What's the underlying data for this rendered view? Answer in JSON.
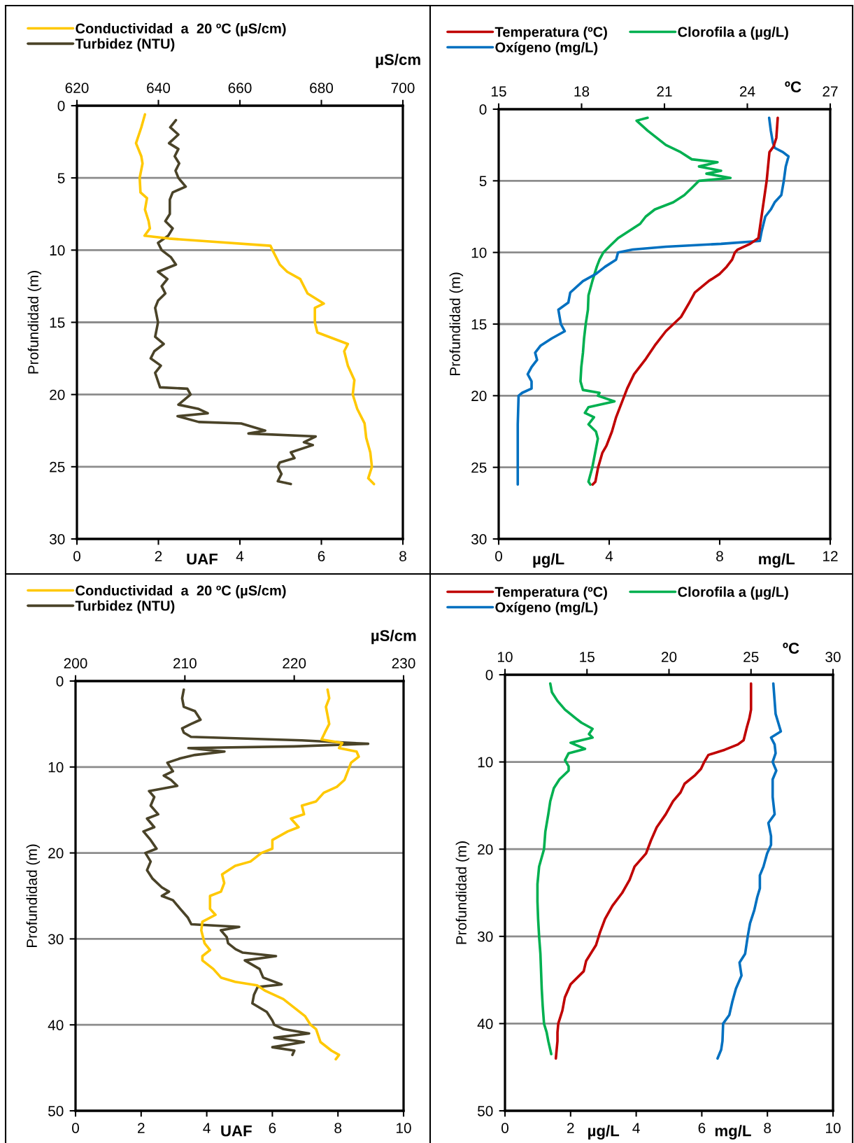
{
  "chart_data": [
    {
      "type": "line",
      "ylabel": "Profundidad (m)",
      "xlabel": [
        "UAF"
      ],
      "x2label": "µS/cm",
      "ylim": [
        30,
        0
      ],
      "yticks": [
        0,
        5,
        10,
        15,
        20,
        25,
        30
      ],
      "xlim": [
        0,
        8
      ],
      "xticks": [
        0,
        2,
        4,
        6,
        8
      ],
      "x2lim": [
        620,
        700
      ],
      "x2ticks": [
        620,
        640,
        660,
        680,
        700
      ],
      "grid": "y",
      "legend": "top",
      "line_style": "solid",
      "series": [
        {
          "name": "Conductividad  a  20 ºC (µS/cm)",
          "color": "#ffc800",
          "axis": "x2",
          "x": [
            636.7,
            635.8,
            634.5,
            635.8,
            636.1,
            635.4,
            635.6,
            637.2,
            636.7,
            637.6,
            637.9,
            636.6,
            642.6,
            652.6,
            667.5,
            668.0,
            669.8,
            671.6,
            674.8,
            676.6,
            680.6,
            678.4,
            678.4,
            679.0,
            686.5,
            685.6,
            686.5,
            688.1,
            687.7,
            688.8,
            690.6,
            691.0,
            692.0,
            692.4,
            691.5,
            692.9
          ],
          "values": [
            0.6,
            1.5,
            2.6,
            3.5,
            4.0,
            5.0,
            6.0,
            6.4,
            7.2,
            8.0,
            8.5,
            9.0,
            9.2,
            9.4,
            9.7,
            10.0,
            11.0,
            11.5,
            12.0,
            13.0,
            13.7,
            14.0,
            15.0,
            15.7,
            16.5,
            17.0,
            18.0,
            19.0,
            20.0,
            21.0,
            22.0,
            23.0,
            24.0,
            25.0,
            25.8,
            26.2
          ]
        },
        {
          "name": "Turbidez (NTU)",
          "color": "#4a4328",
          "x": [
            2.43,
            2.29,
            2.49,
            2.26,
            2.49,
            2.4,
            2.51,
            2.42,
            2.49,
            2.67,
            2.35,
            2.28,
            2.28,
            2.17,
            2.35,
            2.24,
            1.99,
            2.08,
            2.31,
            2.43,
            1.99,
            2.22,
            2.08,
            2.17,
            1.99,
            1.92,
            1.99,
            1.92,
            2.13,
            1.9,
            1.81,
            2.06,
            1.92,
            2.04,
            2.71,
            2.79,
            2.49,
            2.99,
            3.21,
            2.47,
            2.99,
            4.03,
            4.62,
            4.21,
            5.86,
            5.57,
            5.79,
            5.25,
            5.34,
            4.98,
            4.93,
            5.02,
            4.93,
            5.25
          ],
          "values": [
            1.0,
            1.5,
            2.0,
            2.6,
            3.0,
            3.5,
            4.0,
            4.5,
            5.0,
            5.6,
            6.0,
            6.5,
            7.5,
            8.0,
            8.5,
            9.0,
            9.5,
            10.0,
            10.5,
            11.0,
            11.5,
            12.0,
            12.5,
            13.0,
            13.5,
            14.0,
            15.0,
            16.0,
            16.5,
            17.0,
            17.5,
            18.0,
            18.5,
            19.5,
            19.6,
            20.0,
            20.7,
            21.0,
            21.3,
            21.5,
            21.9,
            22.0,
            22.5,
            22.7,
            22.9,
            23.3,
            23.5,
            24.0,
            24.4,
            24.7,
            25.0,
            25.5,
            26.0,
            26.2
          ]
        }
      ]
    },
    {
      "type": "line",
      "ylabel": "Profundidad (m)",
      "xlabel": [
        "µg/L",
        "mg/L"
      ],
      "x2label": "ºC",
      "ylim": [
        30,
        0
      ],
      "yticks": [
        0,
        5,
        10,
        15,
        20,
        25,
        30
      ],
      "xlim": [
        0,
        12
      ],
      "xticks": [
        0,
        4,
        8,
        12
      ],
      "x2lim": [
        15,
        27
      ],
      "x2ticks": [
        15,
        18,
        21,
        24,
        27
      ],
      "grid": "y",
      "legend": "top",
      "line_style": "solid",
      "series": [
        {
          "name": "Temperatura (ºC)",
          "color": "#c00000",
          "axis": "x2",
          "x": [
            25.1,
            25.05,
            24.95,
            24.8,
            24.7,
            24.55,
            24.4,
            24.1,
            23.65,
            23.55,
            23.45,
            23.25,
            23.0,
            22.6,
            22.1,
            21.9,
            21.6,
            21.05,
            20.65,
            20.3,
            19.9,
            19.65,
            19.55,
            19.25,
            19.1,
            18.9,
            18.75,
            18.6,
            18.5,
            18.4
          ],
          "values": [
            0.6,
            2.0,
            2.6,
            3.0,
            5.0,
            7.0,
            9.0,
            9.4,
            9.8,
            10.0,
            10.5,
            11.0,
            11.5,
            12.0,
            12.8,
            13.5,
            14.5,
            15.5,
            16.5,
            17.5,
            18.5,
            19.5,
            20.0,
            21.5,
            22.5,
            23.5,
            24.0,
            25.0,
            26.0,
            26.2
          ]
        },
        {
          "name": "Clorofila a (µg/L)",
          "color": "#00b050",
          "x": [
            5.39,
            4.99,
            5.39,
            5.72,
            6.05,
            6.59,
            6.99,
            7.92,
            7.25,
            8.05,
            7.52,
            8.39,
            7.25,
            6.99,
            6.72,
            6.32,
            5.65,
            5.32,
            5.12,
            4.72,
            4.32,
            4.05,
            3.79,
            3.65,
            3.55,
            3.39,
            3.25,
            3.23,
            3.15,
            3.09,
            3.05,
            2.99,
            2.96,
            3.05,
            3.65,
            3.59,
            4.19,
            3.25,
            3.12,
            3.45,
            3.25,
            3.52,
            3.59,
            3.49,
            3.39,
            3.25,
            3.32
          ],
          "values": [
            0.6,
            0.8,
            1.5,
            2.0,
            2.5,
            3.0,
            3.5,
            3.7,
            4.0,
            4.3,
            4.5,
            4.8,
            5.0,
            5.5,
            6.0,
            6.5,
            7.0,
            7.5,
            8.0,
            8.5,
            9.0,
            9.5,
            10.0,
            10.5,
            11.0,
            12.0,
            13.0,
            14.0,
            15.0,
            16.0,
            17.0,
            18.0,
            19.0,
            19.6,
            19.8,
            20.0,
            20.4,
            20.8,
            21.2,
            21.5,
            22.0,
            22.5,
            23.0,
            24.0,
            25.0,
            26.0,
            26.2
          ]
        },
        {
          "name": "Oxígeno (mg/L)",
          "color": "#0070c0",
          "x": [
            9.79,
            9.85,
            9.92,
            9.99,
            10.29,
            10.49,
            10.39,
            10.32,
            10.23,
            9.99,
            9.85,
            9.65,
            9.52,
            9.45,
            8.05,
            6.05,
            4.85,
            4.32,
            4.25,
            3.85,
            3.52,
            3.05,
            2.59,
            2.52,
            2.16,
            2.25,
            2.39,
            1.92,
            1.52,
            1.32,
            1.39,
            1.19,
            1.05,
            1.19,
            1.19,
            0.85,
            0.72,
            0.69,
            0.69
          ],
          "values": [
            0.6,
            1.5,
            2.3,
            2.7,
            3.0,
            3.3,
            4.0,
            5.0,
            6.0,
            6.5,
            7.0,
            7.5,
            8.5,
            9.2,
            9.4,
            9.6,
            9.8,
            10.0,
            10.5,
            11.0,
            11.5,
            12.0,
            12.8,
            13.5,
            14.0,
            15.0,
            15.5,
            16.0,
            16.5,
            17.0,
            17.5,
            18.0,
            18.5,
            19.0,
            19.5,
            19.8,
            20.0,
            22.0,
            26.2
          ]
        }
      ]
    },
    {
      "type": "line",
      "ylabel": "Profundidad (m)",
      "xlabel": [
        "UAF"
      ],
      "x2label": "µS/cm",
      "ylim": [
        50,
        0
      ],
      "yticks": [
        0,
        10,
        20,
        30,
        40,
        50
      ],
      "xlim": [
        0,
        10
      ],
      "xticks": [
        0,
        2,
        4,
        6,
        8,
        10
      ],
      "x2lim": [
        200,
        230
      ],
      "x2ticks": [
        200,
        210,
        220,
        230
      ],
      "grid": "y",
      "legend": "top",
      "line_style": "solid",
      "series": [
        {
          "name": "Conductividad  a  20 ºC (µS/cm)",
          "color": "#ffc800",
          "axis": "x2",
          "x": [
            223.05,
            223.2,
            222.9,
            223.05,
            223.2,
            222.8,
            222.5,
            224.4,
            224.1,
            225.7,
            225.9,
            225.2,
            224.9,
            224.6,
            223.9,
            222.7,
            222.0,
            220.7,
            220.9,
            219.7,
            220.4,
            219.4,
            218.0,
            218.0,
            217.0,
            216.0,
            214.6,
            213.4,
            213.6,
            213.3,
            212.3,
            212.3,
            212.8,
            211.6,
            211.5,
            211.8,
            212.3,
            211.6,
            211.6,
            212.6,
            213.3,
            214.6,
            216.6,
            217.3,
            219.0,
            220.0,
            221.0,
            221.5,
            222.0,
            222.4,
            223.4,
            224.1,
            223.8
          ],
          "values": [
            1.0,
            2.0,
            3.0,
            4.0,
            5.0,
            6.0,
            6.8,
            7.2,
            7.8,
            8.2,
            8.8,
            9.5,
            10.5,
            11.5,
            12.3,
            13.0,
            14.0,
            14.5,
            15.5,
            16.0,
            17.0,
            17.5,
            18.5,
            19.5,
            20.0,
            21.0,
            21.5,
            22.5,
            23.5,
            24.5,
            25.0,
            26.5,
            27.2,
            28.0,
            29.0,
            30.5,
            31.3,
            32.0,
            32.5,
            33.5,
            34.5,
            35.0,
            35.4,
            36.0,
            37.0,
            38.0,
            39.0,
            40.0,
            40.5,
            42.0,
            43.0,
            43.5,
            44.0
          ]
        },
        {
          "name": "Turbidez (NTU)",
          "color": "#4a4328",
          "x": [
            3.3,
            3.25,
            3.3,
            3.64,
            3.81,
            3.52,
            3.25,
            3.3,
            3.52,
            6.9,
            8.92,
            6.67,
            3.44,
            4.54,
            3.64,
            3.19,
            2.8,
            2.97,
            2.69,
            2.91,
            3.1,
            2.24,
            2.4,
            2.29,
            2.52,
            2.18,
            2.4,
            2.07,
            2.29,
            2.47,
            2.13,
            2.29,
            2.18,
            2.35,
            2.63,
            2.85,
            2.63,
            2.97,
            3.19,
            3.42,
            3.53,
            4.99,
            4.43,
            4.61,
            4.65,
            4.88,
            5.1,
            6.11,
            5.16,
            5.61,
            5.72,
            6.28,
            5.55,
            5.44,
            5.39,
            5.83,
            6.0,
            6.06,
            6.34,
            7.12,
            6.06,
            6.96,
            6.0,
            6.67,
            6.61
          ],
          "values": [
            1.0,
            2.0,
            3.0,
            3.5,
            4.5,
            5.0,
            5.5,
            6.0,
            6.5,
            6.9,
            7.3,
            7.6,
            7.8,
            8.2,
            8.6,
            9.0,
            9.5,
            10.5,
            11.0,
            11.5,
            12.2,
            12.8,
            13.5,
            14.5,
            15.5,
            16.0,
            17.0,
            17.5,
            18.5,
            19.5,
            20.0,
            21.0,
            22.0,
            23.0,
            24.0,
            24.5,
            25.0,
            25.5,
            26.5,
            27.5,
            28.3,
            28.6,
            29.0,
            29.8,
            30.5,
            31.2,
            31.6,
            32.0,
            32.5,
            33.5,
            34.5,
            35.3,
            35.6,
            36.5,
            37.5,
            38.5,
            39.5,
            40.0,
            40.5,
            41.0,
            41.5,
            42.0,
            42.6,
            43.0,
            43.5
          ]
        }
      ]
    },
    {
      "type": "line",
      "ylabel": "Profundidad (m)",
      "xlabel": [
        "µg/L",
        "mg/L"
      ],
      "x2label": "ºC",
      "ylim": [
        50,
        0
      ],
      "yticks": [
        0,
        10,
        20,
        30,
        40,
        50
      ],
      "xlim": [
        0,
        10
      ],
      "xticks": [
        0,
        2,
        4,
        6,
        8,
        10
      ],
      "x2lim": [
        10,
        30
      ],
      "x2ticks": [
        10,
        15,
        20,
        25,
        30
      ],
      "grid": "y",
      "legend": "top",
      "line_style": "solid",
      "series": [
        {
          "name": "Temperatura (ºC)",
          "color": "#c00000",
          "axis": "x2",
          "x": [
            25.0,
            25.0,
            24.9,
            24.75,
            24.55,
            24.2,
            23.4,
            22.4,
            22.15,
            21.95,
            21.6,
            20.95,
            20.7,
            20.25,
            19.8,
            19.25,
            18.9,
            18.6,
            17.9,
            17.6,
            17.15,
            16.55,
            16.1,
            15.8,
            15.55,
            14.95,
            14.8,
            14.0,
            13.65,
            13.5,
            13.25,
            13.2,
            13.2,
            13.1
          ],
          "values": [
            1.0,
            4.0,
            5.0,
            6.0,
            7.5,
            8.0,
            8.6,
            9.2,
            10.0,
            10.8,
            11.5,
            12.5,
            13.5,
            14.5,
            16.0,
            17.5,
            19.0,
            20.5,
            22.0,
            23.5,
            25.0,
            26.5,
            28.0,
            29.5,
            31.0,
            32.8,
            34.0,
            35.5,
            37.0,
            38.5,
            40.0,
            41.0,
            42.0,
            44.0
          ]
        },
        {
          "name": "Clorofila a (µg/L)",
          "color": "#00b050",
          "x": [
            1.38,
            1.43,
            1.6,
            1.83,
            2.16,
            2.33,
            2.67,
            2.56,
            2.67,
            2.0,
            2.44,
            1.94,
            1.83,
            1.94,
            1.94,
            1.66,
            1.49,
            1.38,
            1.32,
            1.23,
            1.19,
            1.04,
            0.99,
            0.99,
            1.01,
            1.04,
            1.08,
            1.1,
            1.12,
            1.15,
            1.19,
            1.27,
            1.32,
            1.41
          ],
          "values": [
            1.0,
            2.0,
            3.0,
            4.0,
            5.0,
            5.5,
            6.2,
            6.8,
            7.2,
            7.8,
            8.5,
            9.0,
            9.8,
            10.5,
            11.0,
            12.0,
            13.0,
            14.5,
            16.0,
            18.0,
            20.0,
            22.0,
            24.0,
            26.0,
            28.0,
            30.0,
            32.0,
            34.0,
            36.0,
            38.0,
            40.0,
            41.0,
            42.0,
            43.5
          ]
        },
        {
          "name": "Oxígeno (mg/L)",
          "color": "#0070c0",
          "x": [
            8.18,
            8.22,
            8.25,
            8.33,
            8.41,
            8.11,
            8.22,
            8.25,
            8.16,
            8.27,
            8.16,
            8.16,
            8.22,
            8.03,
            8.11,
            8.11,
            7.99,
            7.88,
            7.77,
            7.77,
            7.69,
            7.6,
            7.47,
            7.4,
            7.32,
            7.15,
            7.21,
            7.04,
            6.93,
            6.84,
            6.65,
            6.63,
            6.59,
            6.48
          ],
          "values": [
            1.0,
            3.0,
            4.5,
            5.5,
            6.5,
            7.2,
            8.0,
            9.0,
            10.0,
            11.0,
            12.0,
            14.0,
            16.0,
            17.0,
            18.5,
            19.5,
            20.5,
            22.0,
            23.0,
            24.5,
            25.5,
            27.0,
            28.5,
            30.0,
            32.0,
            33.0,
            34.5,
            36.0,
            37.5,
            39.0,
            40.0,
            42.0,
            43.0,
            44.0
          ]
        }
      ]
    }
  ]
}
